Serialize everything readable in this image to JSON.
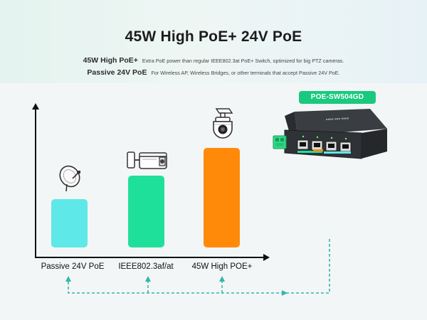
{
  "header": {
    "title": "45W High PoE+ 24V PoE",
    "features": [
      {
        "name": "45W High PoE+",
        "description": "Extra PoE power than regular IEEE802.3at PoE+ Switch, optimized for big PTZ cameras."
      },
      {
        "name": "Passive 24V PoE",
        "description": "For Wireless AP, Wireless Bridges, or other terminals that accept Passive 24V PoE."
      }
    ]
  },
  "chart_data": {
    "type": "bar",
    "categories": [
      "Passive 24V PoE",
      "IEEE802.3af/at",
      "45W High POE+"
    ],
    "values": [
      1.0,
      1.5,
      2.1
    ],
    "title": "",
    "xlabel": "",
    "ylabel": "",
    "colors": [
      "#5ee8e8",
      "#1fe09a",
      "#ff8a0a"
    ],
    "grid": false,
    "legend": "none",
    "icons": [
      "wireless-dish-icon",
      "bullet-camera-icon",
      "ptz-camera-icon"
    ]
  },
  "device": {
    "model_badge": "POE-SW504GD",
    "badge_color": "#19c97e",
    "connector_color": "#2fdc86"
  }
}
